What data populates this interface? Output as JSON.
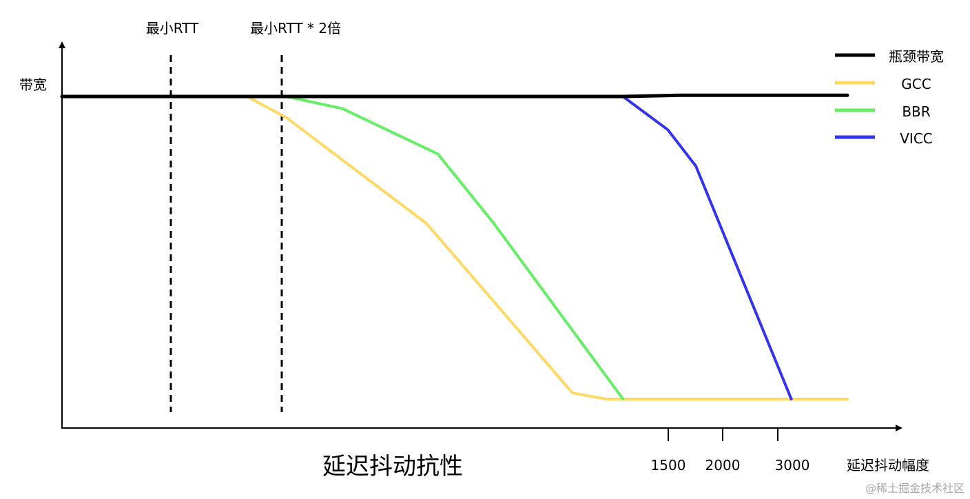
{
  "chart_data": {
    "type": "line",
    "title": "延迟抖动抗性",
    "xlabel": "延迟抖动幅度",
    "ylabel": "带宽",
    "x_ticks": [
      "1500",
      "2000",
      "3000"
    ],
    "vlines": [
      {
        "label": "最小RTT"
      },
      {
        "label": "最小RTT * 2倍"
      }
    ],
    "series": [
      {
        "name": "瓶颈带宽",
        "color": "#000000",
        "x": [
          0,
          0.78,
          1,
          1.1,
          1.4
        ],
        "y": [
          1.0,
          1.0,
          1.0,
          1.004,
          1.004
        ]
      },
      {
        "name": "GCC",
        "color": "#ffd966",
        "x": [
          0,
          0.33,
          0.4,
          0.65,
          0.91,
          0.97,
          1.4
        ],
        "y": [
          1.0,
          1.0,
          0.93,
          0.58,
          0.02,
          0.0,
          0.0
        ],
        "draw_start": 0.33
      },
      {
        "name": "BBR",
        "color": "#66ee66",
        "x": [
          0,
          0.4,
          0.5,
          0.67,
          0.77,
          1.0
        ],
        "y": [
          1.0,
          1.0,
          0.96,
          0.81,
          0.58,
          0.0
        ],
        "draw_start": 0.4
      },
      {
        "name": "VICC",
        "color": "#3333ee",
        "x": [
          0,
          1.0,
          1.08,
          1.13,
          1.3
        ],
        "y": [
          1.0,
          1.0,
          0.89,
          0.77,
          0.0
        ]
      }
    ],
    "legend_position": "top-right",
    "grid": false
  },
  "watermark": "@稀土掘金技术社区"
}
